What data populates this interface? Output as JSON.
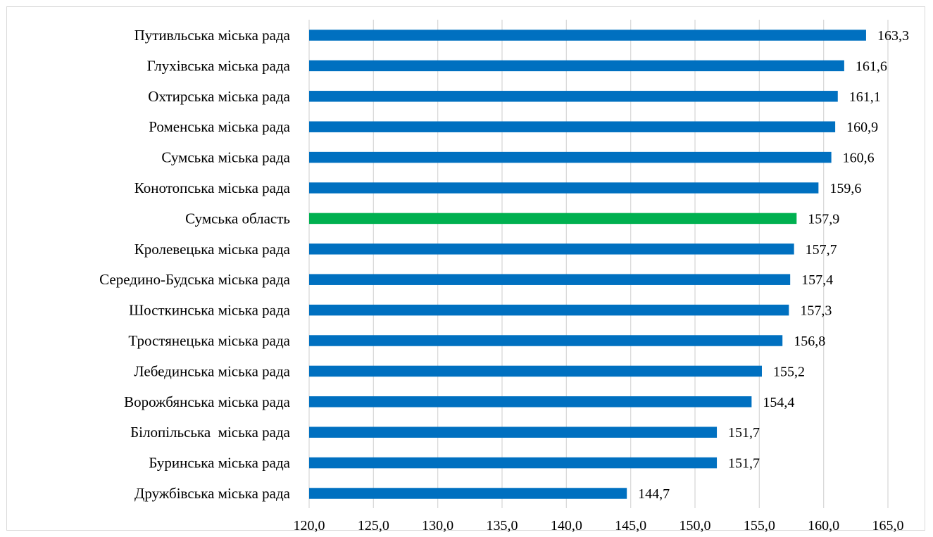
{
  "chart_data": {
    "type": "bar",
    "orientation": "horizontal",
    "title": "",
    "xlabel": "",
    "ylabel": "",
    "xlim": [
      120,
      165
    ],
    "x_ticks": [
      120,
      125,
      130,
      135,
      140,
      145,
      150,
      155,
      160,
      165
    ],
    "x_tick_labels": [
      "120,0",
      "125,0",
      "130,0",
      "135,0",
      "140,0",
      "145,0",
      "150,0",
      "155,0",
      "160,0",
      "165,0"
    ],
    "grid": "vertical",
    "legend": "none",
    "categories": [
      "Путивльська міська рада",
      "Глухівська міська рада",
      "Охтирська міська рада",
      "Роменська міська рада",
      "Сумська міська рада",
      "Конотопська міська рада",
      "Сумська область",
      "Кролевецька міська рада",
      "Середино-Будська міська рада",
      "Шосткинська міська рада",
      "Тростянецька міська рада",
      "Лебединська міська рада",
      "Ворожбянська міська рада",
      "Білопільська  міська рада",
      "Буринська міська рада",
      "Дружбівська міська рада"
    ],
    "values": [
      163.3,
      161.6,
      161.1,
      160.9,
      160.6,
      159.6,
      157.9,
      157.7,
      157.4,
      157.3,
      156.8,
      155.2,
      154.4,
      151.7,
      151.7,
      144.7
    ],
    "value_labels": [
      "163,3",
      "161,6",
      "161,1",
      "160,9",
      "160,6",
      "159,6",
      "157,9",
      "157,7",
      "157,4",
      "157,3",
      "156,8",
      "155,2",
      "154,4",
      "151,7",
      "151,7",
      "144,7"
    ],
    "highlight_index": 6,
    "colors": {
      "bar": "#0070c0",
      "highlight": "#00b050",
      "grid": "#d9d9d9"
    }
  }
}
